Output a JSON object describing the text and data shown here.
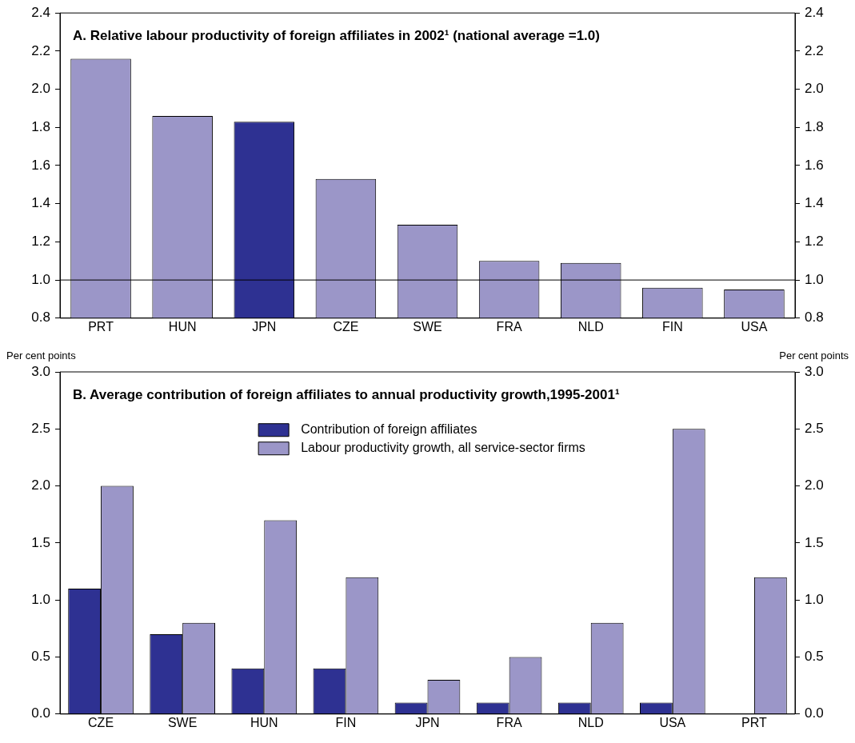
{
  "chart_data": [
    {
      "type": "bar",
      "title": "A. Relative labour productivity of foreign affiliates in 2002¹ (national average =1.0)",
      "categories": [
        "PRT",
        "HUN",
        "JPN",
        "CZE",
        "SWE",
        "FRA",
        "NLD",
        "FIN",
        "USA"
      ],
      "values": [
        2.16,
        1.86,
        1.83,
        1.53,
        1.29,
        1.1,
        1.09,
        0.96,
        0.95
      ],
      "colors": [
        "#9b96c8",
        "#9b96c8",
        "#2e3192",
        "#9b96c8",
        "#9b96c8",
        "#9b96c8",
        "#9b96c8",
        "#9b96c8",
        "#9b96c8"
      ],
      "ylim": [
        0.8,
        2.4
      ],
      "yticks": [
        {
          "value": 0.8,
          "label": "0.8"
        },
        {
          "value": 1.0,
          "label": "1.0"
        },
        {
          "value": 1.2,
          "label": "1.2"
        },
        {
          "value": 1.4,
          "label": "1.4"
        },
        {
          "value": 1.6,
          "label": "1.6"
        },
        {
          "value": 1.8,
          "label": "1.8"
        },
        {
          "value": 2.0,
          "label": "2.0"
        },
        {
          "value": 2.2,
          "label": "2.2"
        },
        {
          "value": 2.4,
          "label": "2.4"
        }
      ],
      "y2lim": [
        0.8,
        2.4
      ],
      "y2ticks": [
        {
          "value": 0.8,
          "label": "0.8"
        },
        {
          "value": 1.0,
          "label": "1.0"
        },
        {
          "value": 1.2,
          "label": "1.2"
        },
        {
          "value": 1.4,
          "label": "1.4"
        },
        {
          "value": 1.6,
          "label": "1.6"
        },
        {
          "value": 1.8,
          "label": "1.8"
        },
        {
          "value": 2.0,
          "label": "2.0"
        },
        {
          "value": 2.2,
          "label": "2.2"
        },
        {
          "value": 2.4,
          "label": "2.4"
        }
      ],
      "ref_lines": [
        {
          "axis": "y",
          "value": 1.0,
          "color": "#000000"
        }
      ],
      "grid": false
    },
    {
      "type": "bar",
      "title": "B. Average contribution of foreign affiliates to annual productivity growth,1995-2001¹",
      "ylabel": "Per cent points",
      "y2label": "Per cent points",
      "categories": [
        "CZE",
        "SWE",
        "HUN",
        "FIN",
        "JPN",
        "FRA",
        "NLD",
        "USA",
        "PRT"
      ],
      "series": [
        {
          "name": "Contribution of foreign affiliates",
          "color": "#2e3192",
          "values": [
            1.1,
            0.7,
            0.4,
            0.4,
            0.1,
            0.1,
            0.1,
            0.1,
            0
          ]
        },
        {
          "name": "Labour productivity growth, all service-sector firms",
          "color": "#9b96c8",
          "values": [
            2.0,
            0.8,
            1.7,
            1.2,
            0.3,
            0.5,
            0.8,
            2.5,
            1.2
          ]
        }
      ],
      "ylim": [
        0,
        3
      ],
      "yticks": [
        {
          "value": 0,
          "label": "0.0"
        },
        {
          "value": 0.5,
          "label": "0.5"
        },
        {
          "value": 1,
          "label": "1.0"
        },
        {
          "value": 1.5,
          "label": "1.5"
        },
        {
          "value": 2,
          "label": "2.0"
        },
        {
          "value": 2.5,
          "label": "2.5"
        },
        {
          "value": 3,
          "label": "3.0"
        }
      ],
      "y2lim": [
        0,
        3
      ],
      "y2ticks": [
        {
          "value": 0,
          "label": "0.0"
        },
        {
          "value": 0.5,
          "label": "0.5"
        },
        {
          "value": 1,
          "label": "1.0"
        },
        {
          "value": 1.5,
          "label": "1.5"
        },
        {
          "value": 2,
          "label": "2.0"
        },
        {
          "value": 2.5,
          "label": "2.5"
        },
        {
          "value": 3,
          "label": "3.0"
        }
      ],
      "legend": "top",
      "grid": false
    }
  ]
}
